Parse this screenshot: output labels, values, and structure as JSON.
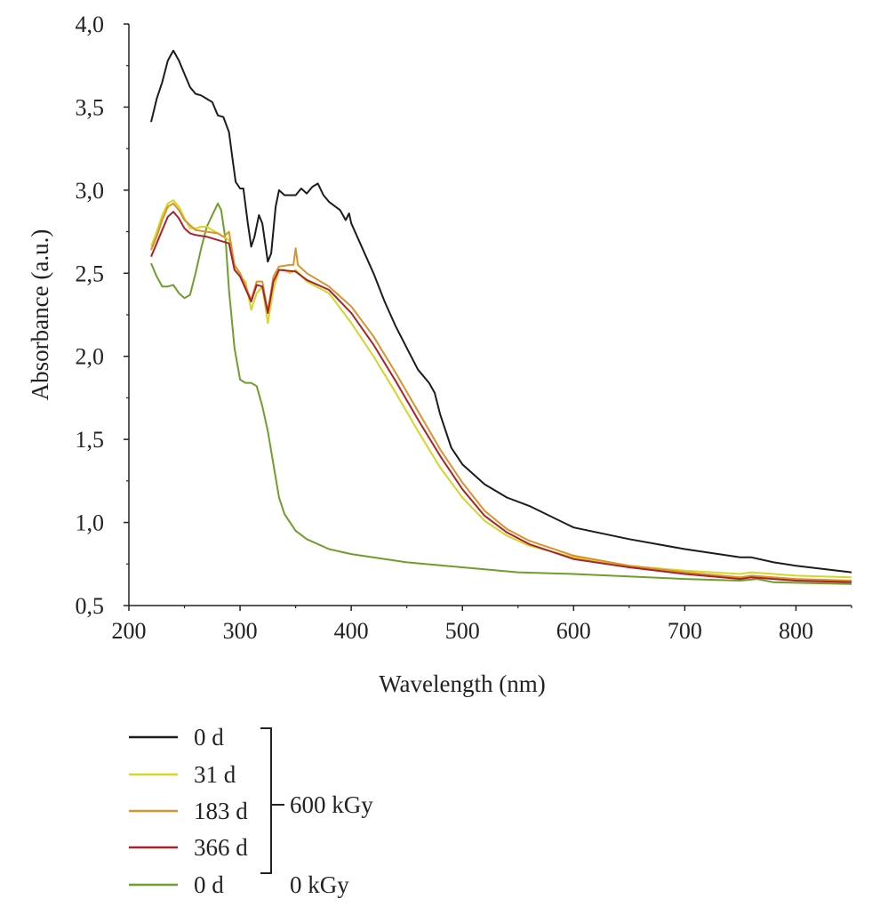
{
  "chart_data": {
    "type": "line",
    "title": "",
    "xlabel": "Wavelength (nm)",
    "ylabel": "Absorbance (a.u.)",
    "xlim": [
      200,
      850
    ],
    "ylim": [
      0.5,
      4.0
    ],
    "xticks": [
      200,
      300,
      400,
      500,
      600,
      700,
      800
    ],
    "xtick_labels": [
      "200",
      "300",
      "400",
      "500",
      "600",
      "700",
      "800"
    ],
    "yticks": [
      0.5,
      1.0,
      1.5,
      2.0,
      2.5,
      3.0,
      3.5,
      4.0
    ],
    "ytick_labels": [
      "0,5",
      "1,0",
      "1,5",
      "2,0",
      "2,5",
      "3,0",
      "3,5",
      "4,0"
    ],
    "grid": false,
    "legend_placement": "bottom-left, below plot",
    "legend_groups": [
      {
        "label": "600 kGy",
        "members": [
          0,
          1,
          2,
          3
        ]
      },
      {
        "label": "0 kGy",
        "members": [
          4
        ]
      }
    ],
    "series": [
      {
        "name": "0 d",
        "color": "#1c1c1c",
        "points": [
          [
            220,
            3.41
          ],
          [
            225,
            3.55
          ],
          [
            230,
            3.65
          ],
          [
            235,
            3.78
          ],
          [
            240,
            3.84
          ],
          [
            245,
            3.78
          ],
          [
            250,
            3.7
          ],
          [
            255,
            3.62
          ],
          [
            260,
            3.58
          ],
          [
            265,
            3.57
          ],
          [
            270,
            3.55
          ],
          [
            275,
            3.53
          ],
          [
            280,
            3.45
          ],
          [
            285,
            3.44
          ],
          [
            290,
            3.35
          ],
          [
            293,
            3.2
          ],
          [
            296,
            3.05
          ],
          [
            300,
            3.01
          ],
          [
            303,
            3.01
          ],
          [
            307,
            2.8
          ],
          [
            310,
            2.66
          ],
          [
            313,
            2.72
          ],
          [
            317,
            2.85
          ],
          [
            320,
            2.8
          ],
          [
            325,
            2.57
          ],
          [
            328,
            2.62
          ],
          [
            332,
            2.9
          ],
          [
            335,
            3.0
          ],
          [
            340,
            2.97
          ],
          [
            350,
            2.97
          ],
          [
            355,
            3.01
          ],
          [
            360,
            2.98
          ],
          [
            365,
            3.02
          ],
          [
            370,
            3.04
          ],
          [
            375,
            2.97
          ],
          [
            380,
            2.93
          ],
          [
            390,
            2.88
          ],
          [
            395,
            2.82
          ],
          [
            398,
            2.86
          ],
          [
            400,
            2.8
          ],
          [
            410,
            2.65
          ],
          [
            420,
            2.5
          ],
          [
            430,
            2.33
          ],
          [
            440,
            2.18
          ],
          [
            450,
            2.05
          ],
          [
            460,
            1.92
          ],
          [
            470,
            1.84
          ],
          [
            475,
            1.78
          ],
          [
            480,
            1.65
          ],
          [
            490,
            1.45
          ],
          [
            500,
            1.35
          ],
          [
            520,
            1.23
          ],
          [
            540,
            1.15
          ],
          [
            560,
            1.1
          ],
          [
            600,
            0.97
          ],
          [
            650,
            0.9
          ],
          [
            700,
            0.84
          ],
          [
            750,
            0.79
          ],
          [
            760,
            0.79
          ],
          [
            780,
            0.76
          ],
          [
            800,
            0.74
          ],
          [
            850,
            0.7
          ]
        ]
      },
      {
        "name": "31 d",
        "color": "#d4d62a",
        "points": [
          [
            220,
            2.66
          ],
          [
            225,
            2.75
          ],
          [
            230,
            2.85
          ],
          [
            235,
            2.92
          ],
          [
            240,
            2.94
          ],
          [
            245,
            2.9
          ],
          [
            250,
            2.83
          ],
          [
            255,
            2.77
          ],
          [
            260,
            2.77
          ],
          [
            265,
            2.78
          ],
          [
            270,
            2.78
          ],
          [
            275,
            2.76
          ],
          [
            280,
            2.74
          ],
          [
            285,
            2.72
          ],
          [
            290,
            2.7
          ],
          [
            295,
            2.55
          ],
          [
            300,
            2.48
          ],
          [
            305,
            2.45
          ],
          [
            310,
            2.28
          ],
          [
            315,
            2.38
          ],
          [
            320,
            2.42
          ],
          [
            325,
            2.2
          ],
          [
            330,
            2.4
          ],
          [
            335,
            2.52
          ],
          [
            340,
            2.52
          ],
          [
            345,
            2.5
          ],
          [
            350,
            2.52
          ],
          [
            360,
            2.45
          ],
          [
            380,
            2.38
          ],
          [
            400,
            2.2
          ],
          [
            420,
            2.0
          ],
          [
            440,
            1.78
          ],
          [
            460,
            1.55
          ],
          [
            480,
            1.33
          ],
          [
            500,
            1.15
          ],
          [
            520,
            1.01
          ],
          [
            540,
            0.92
          ],
          [
            560,
            0.86
          ],
          [
            600,
            0.79
          ],
          [
            650,
            0.74
          ],
          [
            700,
            0.71
          ],
          [
            750,
            0.69
          ],
          [
            760,
            0.7
          ],
          [
            800,
            0.68
          ],
          [
            850,
            0.67
          ]
        ]
      },
      {
        "name": "183 d",
        "color": "#d9932a",
        "points": [
          [
            220,
            2.64
          ],
          [
            225,
            2.72
          ],
          [
            230,
            2.82
          ],
          [
            235,
            2.9
          ],
          [
            240,
            2.92
          ],
          [
            245,
            2.88
          ],
          [
            250,
            2.82
          ],
          [
            260,
            2.76
          ],
          [
            270,
            2.75
          ],
          [
            280,
            2.74
          ],
          [
            285,
            2.72
          ],
          [
            290,
            2.75
          ],
          [
            295,
            2.55
          ],
          [
            300,
            2.5
          ],
          [
            310,
            2.34
          ],
          [
            315,
            2.45
          ],
          [
            320,
            2.45
          ],
          [
            325,
            2.27
          ],
          [
            330,
            2.48
          ],
          [
            335,
            2.54
          ],
          [
            345,
            2.55
          ],
          [
            348,
            2.55
          ],
          [
            350,
            2.65
          ],
          [
            352,
            2.55
          ],
          [
            360,
            2.5
          ],
          [
            380,
            2.42
          ],
          [
            400,
            2.3
          ],
          [
            420,
            2.12
          ],
          [
            440,
            1.9
          ],
          [
            460,
            1.67
          ],
          [
            480,
            1.44
          ],
          [
            500,
            1.24
          ],
          [
            520,
            1.07
          ],
          [
            540,
            0.96
          ],
          [
            560,
            0.89
          ],
          [
            600,
            0.8
          ],
          [
            650,
            0.74
          ],
          [
            700,
            0.7
          ],
          [
            750,
            0.67
          ],
          [
            760,
            0.68
          ],
          [
            800,
            0.66
          ],
          [
            850,
            0.65
          ]
        ]
      },
      {
        "name": "366 d",
        "color": "#a8232e",
        "points": [
          [
            220,
            2.6
          ],
          [
            225,
            2.68
          ],
          [
            230,
            2.76
          ],
          [
            235,
            2.84
          ],
          [
            240,
            2.87
          ],
          [
            245,
            2.83
          ],
          [
            250,
            2.77
          ],
          [
            255,
            2.74
          ],
          [
            260,
            2.73
          ],
          [
            270,
            2.72
          ],
          [
            280,
            2.7
          ],
          [
            285,
            2.69
          ],
          [
            290,
            2.68
          ],
          [
            295,
            2.52
          ],
          [
            300,
            2.48
          ],
          [
            310,
            2.33
          ],
          [
            315,
            2.43
          ],
          [
            320,
            2.42
          ],
          [
            325,
            2.26
          ],
          [
            330,
            2.45
          ],
          [
            335,
            2.52
          ],
          [
            350,
            2.51
          ],
          [
            360,
            2.46
          ],
          [
            380,
            2.4
          ],
          [
            400,
            2.26
          ],
          [
            420,
            2.07
          ],
          [
            440,
            1.85
          ],
          [
            460,
            1.62
          ],
          [
            480,
            1.4
          ],
          [
            500,
            1.2
          ],
          [
            520,
            1.04
          ],
          [
            540,
            0.94
          ],
          [
            560,
            0.87
          ],
          [
            600,
            0.78
          ],
          [
            650,
            0.73
          ],
          [
            700,
            0.69
          ],
          [
            750,
            0.66
          ],
          [
            760,
            0.67
          ],
          [
            800,
            0.65
          ],
          [
            850,
            0.64
          ]
        ]
      },
      {
        "name": "0 d",
        "color": "#6e9e2c",
        "points": [
          [
            220,
            2.56
          ],
          [
            225,
            2.48
          ],
          [
            230,
            2.42
          ],
          [
            235,
            2.42
          ],
          [
            240,
            2.43
          ],
          [
            245,
            2.38
          ],
          [
            250,
            2.35
          ],
          [
            255,
            2.37
          ],
          [
            260,
            2.5
          ],
          [
            265,
            2.65
          ],
          [
            270,
            2.78
          ],
          [
            275,
            2.85
          ],
          [
            280,
            2.92
          ],
          [
            283,
            2.88
          ],
          [
            287,
            2.7
          ],
          [
            290,
            2.4
          ],
          [
            295,
            2.05
          ],
          [
            300,
            1.86
          ],
          [
            305,
            1.84
          ],
          [
            310,
            1.84
          ],
          [
            315,
            1.82
          ],
          [
            320,
            1.7
          ],
          [
            325,
            1.55
          ],
          [
            330,
            1.35
          ],
          [
            335,
            1.15
          ],
          [
            340,
            1.05
          ],
          [
            350,
            0.95
          ],
          [
            360,
            0.9
          ],
          [
            380,
            0.84
          ],
          [
            400,
            0.81
          ],
          [
            450,
            0.76
          ],
          [
            500,
            0.73
          ],
          [
            550,
            0.7
          ],
          [
            600,
            0.69
          ],
          [
            700,
            0.66
          ],
          [
            750,
            0.65
          ],
          [
            765,
            0.66
          ],
          [
            780,
            0.64
          ],
          [
            850,
            0.63
          ]
        ]
      }
    ]
  }
}
